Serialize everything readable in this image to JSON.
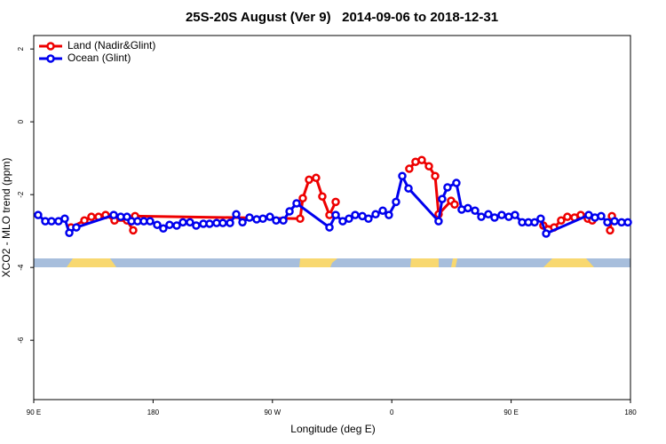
{
  "chart_data": {
    "type": "line",
    "title": "25S-20S August (Ver 9)   2014-09-06 to 2018-12-31",
    "xlabel": "Longitude (deg E)",
    "ylabel": "XCO2 - MLO trend (ppm)",
    "xlim": [
      90,
      540
    ],
    "ylim": [
      -7.63,
      2.37
    ],
    "xticks": [
      {
        "value": 90,
        "label": "90 E"
      },
      180,
      {
        "value": 270,
        "label": "90 W"
      },
      {
        "value": 360,
        "label": "0"
      },
      {
        "value": 450,
        "label": "90 E"
      },
      {
        "value": 540,
        "label": "180"
      }
    ],
    "yticks": [
      2,
      0,
      -2,
      -4,
      -6
    ],
    "legend": "upper left",
    "series": [
      {
        "name": "Land (Nadir&Glint)",
        "color": "#ee0000",
        "x": [
          118.1,
          128.2,
          133.5,
          138.9,
          144.2,
          150.9,
          160.3,
          165.0,
          null,
          166.4,
          290.9,
          292.9,
          297.6,
          302.9,
          307.6,
          313.0,
          317.7,
          null,
          373.2,
          377.9,
          382.6,
          388.0,
          392.7,
          395.3,
          404.7,
          407.4,
          null,
          474.3,
          482.4,
          487.7,
          492.4,
          497.8,
          502.5,
          507.8,
          511.2,
          null,
          524.6,
          526.0
        ],
        "values": [
          -2.9,
          -2.71,
          -2.61,
          -2.61,
          -2.56,
          -2.71,
          -2.71,
          -2.98,
          null,
          -2.59,
          -2.66,
          -2.1,
          -1.59,
          -1.54,
          -2.05,
          -2.56,
          -2.2,
          null,
          -1.29,
          -1.1,
          -1.05,
          -1.22,
          -1.49,
          -2.54,
          -2.17,
          -2.27,
          null,
          -2.85,
          -2.9,
          -2.71,
          -2.61,
          -2.63,
          -2.56,
          -2.66,
          -2.71,
          null,
          -2.98,
          -2.59
        ]
      },
      {
        "name": "Ocean (Glint)",
        "color": "#0000ee",
        "x": [
          93.3,
          98.7,
          103.4,
          108.7,
          113.4,
          116.8,
          122.1,
          150.3,
          155.6,
          160.3,
          163.7,
          168.3,
          173.0,
          177.7,
          183.1,
          187.7,
          192.4,
          197.8,
          202.5,
          207.8,
          212.5,
          217.9,
          222.6,
          227.9,
          232.6,
          238.0,
          242.7,
          247.4,
          252.7,
          258.1,
          262.8,
          268.1,
          272.8,
          278.2,
          282.9,
          288.2,
          313.0,
          317.7,
          323.0,
          327.7,
          332.4,
          337.8,
          342.4,
          347.8,
          353.2,
          357.8,
          363.2,
          367.9,
          372.6,
          395.3,
          398.0,
          402.0,
          408.7,
          412.7,
          417.4,
          422.8,
          427.5,
          432.8,
          437.5,
          442.9,
          448.2,
          452.9,
          458.3,
          463.0,
          467.7,
          472.3,
          476.4,
          508.5,
          513.2,
          517.9,
          522.6,
          528.0,
          533.3,
          538.0
        ],
        "values": [
          -2.56,
          -2.73,
          -2.73,
          -2.73,
          -2.66,
          -3.05,
          -2.9,
          -2.56,
          -2.61,
          -2.61,
          -2.73,
          -2.73,
          -2.73,
          -2.73,
          -2.83,
          -2.93,
          -2.83,
          -2.85,
          -2.76,
          -2.76,
          -2.85,
          -2.8,
          -2.8,
          -2.78,
          -2.78,
          -2.78,
          -2.54,
          -2.76,
          -2.63,
          -2.68,
          -2.66,
          -2.61,
          -2.71,
          -2.71,
          -2.46,
          -2.24,
          -2.9,
          -2.56,
          -2.73,
          -2.66,
          -2.56,
          -2.59,
          -2.66,
          -2.54,
          -2.44,
          -2.56,
          -2.2,
          -1.49,
          -1.83,
          -2.73,
          -2.12,
          -1.8,
          -1.68,
          -2.41,
          -2.37,
          -2.44,
          -2.61,
          -2.54,
          -2.63,
          -2.56,
          -2.61,
          -2.56,
          -2.76,
          -2.76,
          -2.76,
          -2.66,
          -3.07,
          -2.56,
          -2.63,
          -2.59,
          -2.76,
          -2.73,
          -2.76,
          -2.76
        ]
      }
    ]
  }
}
